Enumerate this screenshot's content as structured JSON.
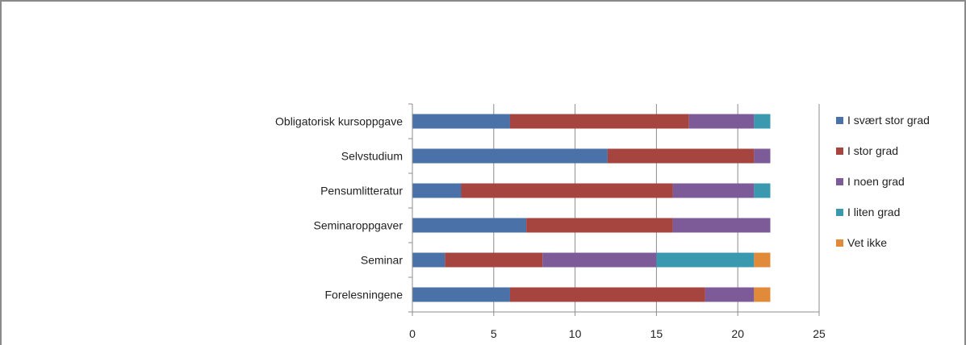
{
  "chart_data": {
    "type": "bar",
    "orientation": "horizontal",
    "stacked": true,
    "categories": [
      "Obligatorisk kursoppgave",
      "Selvstudium",
      "Pensumlitteratur",
      "Seminaroppgaver",
      "Seminar",
      "Forelesningene"
    ],
    "series": [
      {
        "name": "I svært stor grad",
        "color": "#4a72a8",
        "values": [
          6,
          12,
          3,
          7,
          2,
          6
        ]
      },
      {
        "name": "I stor grad",
        "color": "#a6443f",
        "values": [
          11,
          9,
          13,
          9,
          6,
          12
        ]
      },
      {
        "name": "I noen grad",
        "color": "#7d5b98",
        "values": [
          4,
          1,
          5,
          6,
          7,
          3
        ]
      },
      {
        "name": "I liten grad",
        "color": "#3a99ae",
        "values": [
          1,
          0,
          1,
          0,
          6,
          0
        ]
      },
      {
        "name": "Vet ikke",
        "color": "#e08a3a",
        "values": [
          0,
          0,
          0,
          0,
          1,
          1
        ]
      }
    ],
    "xlim": [
      0,
      25
    ],
    "xticks": [
      0,
      5,
      10,
      15,
      20,
      25
    ],
    "grid": "vertical",
    "legend": "right"
  }
}
